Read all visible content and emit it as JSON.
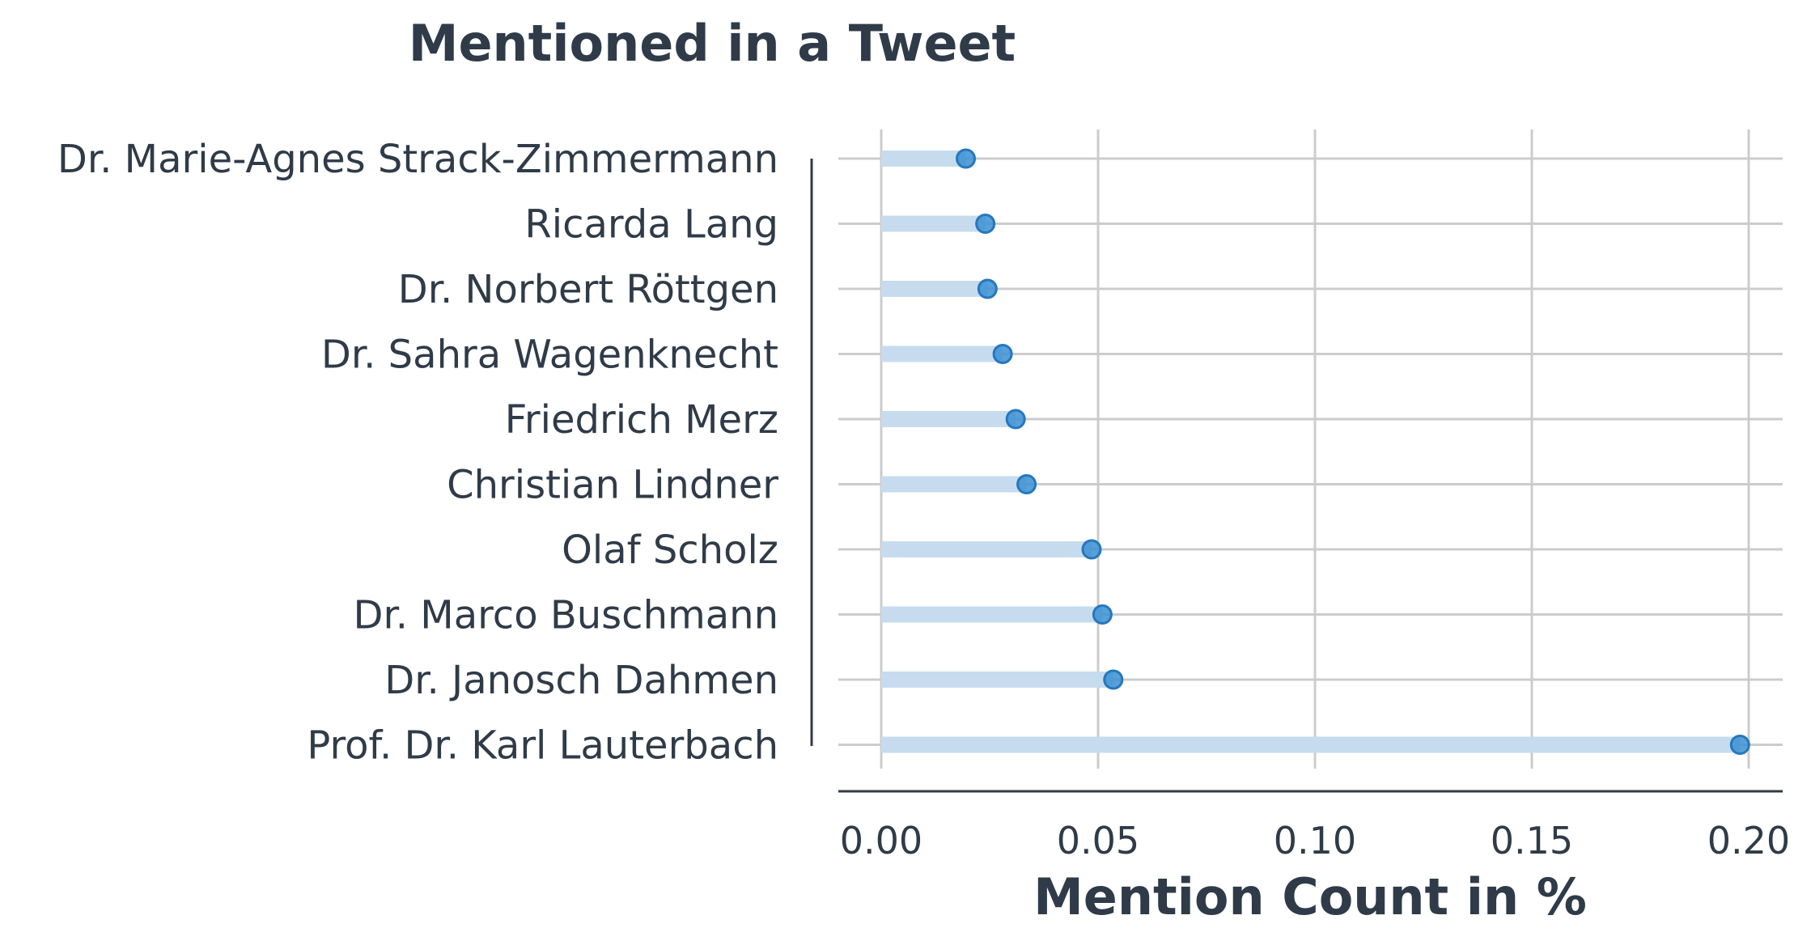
{
  "chart_data": {
    "type": "lollipop",
    "title": "Mentioned in a Tweet",
    "xlabel": "Mention Count in %",
    "ylabel": "",
    "xlim": [
      -0.01,
      0.208
    ],
    "xticks": [
      0.0,
      0.05,
      0.1,
      0.15,
      0.2
    ],
    "xtick_labels": [
      "0.00",
      "0.05",
      "0.10",
      "0.15",
      "0.20"
    ],
    "grid": true,
    "categories": [
      "Dr. Marie-Agnes Strack-Zimmermann",
      "Ricarda Lang",
      "Dr. Norbert Röttgen",
      "Dr. Sahra Wagenknecht",
      "Friedrich Merz",
      "Christian Lindner",
      "Olaf Scholz",
      "Dr. Marco Buschmann",
      "Dr. Janosch Dahmen",
      "Prof. Dr. Karl Lauterbach"
    ],
    "values": [
      0.0195,
      0.024,
      0.0245,
      0.028,
      0.031,
      0.0335,
      0.0485,
      0.051,
      0.0535,
      0.198
    ],
    "colors": {
      "point": "#3a8fd2",
      "point_edge": "#2677bd",
      "stem": "#c6dcee",
      "grid": "#cccccc",
      "text": "#2f3b48",
      "axis": "#2f3b48"
    }
  }
}
